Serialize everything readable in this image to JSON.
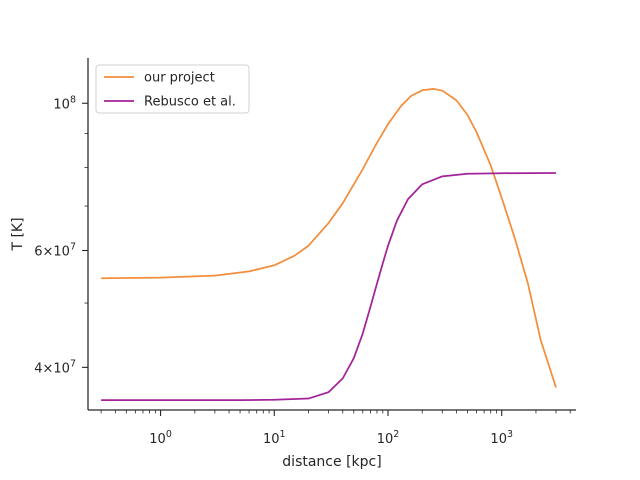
{
  "chart_data": {
    "type": "line",
    "title": "",
    "xlabel": "distance [kpc]",
    "ylabel": "T [K]",
    "xscale": "log",
    "yscale": "log",
    "xlim": [
      0.23,
      4500
    ],
    "ylim": [
      34500000.0,
      117000000.0
    ],
    "grid": false,
    "legend_position": "top-left",
    "x_ticks": [
      {
        "value": 1,
        "base": "10",
        "exp": "0"
      },
      {
        "value": 10,
        "base": "10",
        "exp": "1"
      },
      {
        "value": 100,
        "base": "10",
        "exp": "2"
      },
      {
        "value": 1000,
        "base": "10",
        "exp": "3"
      }
    ],
    "y_ticks": [
      {
        "value": 40000000,
        "mant": "4",
        "base": "10",
        "exp": "7"
      },
      {
        "value": 60000000,
        "mant": "6",
        "base": "10",
        "exp": "7"
      },
      {
        "value": 100000000,
        "mant": "",
        "base": "10",
        "exp": "8"
      }
    ],
    "series": [
      {
        "name": "our project",
        "color": "#f28e3c",
        "points": [
          [
            0.3,
            54500000
          ],
          [
            1,
            54600000
          ],
          [
            3,
            55000000
          ],
          [
            6,
            55800000
          ],
          [
            10,
            57000000
          ],
          [
            15,
            58900000
          ],
          [
            20,
            61000000
          ],
          [
            30,
            66000000
          ],
          [
            40,
            70700000
          ],
          [
            60,
            79600000
          ],
          [
            80,
            87200000
          ],
          [
            100,
            93000000
          ],
          [
            130,
            99000000
          ],
          [
            160,
            102600000
          ],
          [
            200,
            104600000
          ],
          [
            250,
            105100000
          ],
          [
            300,
            104500000
          ],
          [
            400,
            101000000
          ],
          [
            500,
            96000000
          ],
          [
            600,
            90500000
          ],
          [
            800,
            80600000
          ],
          [
            1000,
            72000000
          ],
          [
            1300,
            62700000
          ],
          [
            1700,
            53500000
          ],
          [
            2200,
            44000000
          ],
          [
            3000,
            37300000
          ]
        ]
      },
      {
        "name": "Rebusco et al.",
        "color": "#a3239a",
        "points": [
          [
            0.3,
            35700000
          ],
          [
            1,
            35700000
          ],
          [
            5,
            35700000
          ],
          [
            10,
            35750000
          ],
          [
            20,
            35900000
          ],
          [
            30,
            36700000
          ],
          [
            40,
            38500000
          ],
          [
            50,
            41300000
          ],
          [
            60,
            45000000
          ],
          [
            70,
            49300000
          ],
          [
            80,
            53500000
          ],
          [
            90,
            57400000
          ],
          [
            100,
            61000000
          ],
          [
            120,
            66600000
          ],
          [
            150,
            71700000
          ],
          [
            200,
            75500000
          ],
          [
            300,
            77600000
          ],
          [
            500,
            78300000
          ],
          [
            1000,
            78450000
          ],
          [
            3000,
            78500000
          ]
        ]
      }
    ]
  }
}
